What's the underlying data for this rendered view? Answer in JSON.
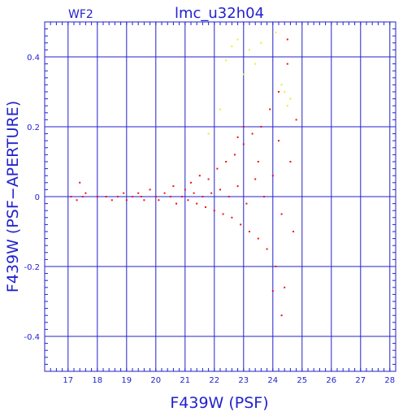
{
  "chart_data": {
    "type": "scatter",
    "title": "lmc_u32h04",
    "subtitle": "WF2",
    "xlabel": "F439W (PSF)",
    "ylabel": "F439W (PSF−APERTURE)",
    "xlim": [
      16.2,
      28.2
    ],
    "ylim": [
      -0.5,
      0.5
    ],
    "xticks": [
      17,
      18,
      19,
      20,
      21,
      22,
      23,
      24,
      25,
      26,
      27,
      28
    ],
    "yticks": [
      -0.4,
      -0.2,
      0,
      0.2,
      0.4
    ],
    "grid": true,
    "colors": {
      "frame": "#2222cc",
      "series_main": "#ee1111",
      "series_flagged": "#eeee22"
    },
    "series": [
      {
        "values": [
          [
            17.1,
            0.0
          ],
          [
            17.3,
            -0.01
          ],
          [
            17.4,
            0.04
          ],
          [
            17.5,
            0.0
          ],
          [
            17.6,
            0.01
          ],
          [
            18.0,
            0.0
          ],
          [
            18.3,
            0.0
          ],
          [
            18.5,
            -0.01
          ],
          [
            18.7,
            0.0
          ],
          [
            18.9,
            0.01
          ],
          [
            19.0,
            -0.01
          ],
          [
            19.2,
            0.0
          ],
          [
            19.4,
            0.01
          ],
          [
            19.5,
            0.0
          ],
          [
            19.6,
            -0.01
          ],
          [
            19.8,
            0.02
          ],
          [
            20.0,
            0.0
          ],
          [
            20.1,
            -0.01
          ],
          [
            20.3,
            0.01
          ],
          [
            20.5,
            0.0
          ],
          [
            20.6,
            0.03
          ],
          [
            20.7,
            -0.02
          ],
          [
            20.9,
            0.0
          ],
          [
            21.0,
            0.02
          ],
          [
            21.1,
            -0.01
          ],
          [
            21.2,
            0.04
          ],
          [
            21.3,
            0.01
          ],
          [
            21.4,
            -0.02
          ],
          [
            21.5,
            0.06
          ],
          [
            21.6,
            0.0
          ],
          [
            21.7,
            -0.03
          ],
          [
            21.8,
            0.05
          ],
          [
            21.9,
            0.01
          ],
          [
            22.0,
            -0.04
          ],
          [
            22.1,
            0.08
          ],
          [
            22.2,
            0.02
          ],
          [
            22.3,
            -0.05
          ],
          [
            22.4,
            0.1
          ],
          [
            22.5,
            0.0
          ],
          [
            22.6,
            -0.06
          ],
          [
            22.7,
            0.12
          ],
          [
            22.8,
            0.03
          ],
          [
            22.9,
            -0.08
          ],
          [
            23.0,
            0.15
          ],
          [
            23.1,
            -0.02
          ],
          [
            23.2,
            -0.1
          ],
          [
            23.3,
            0.18
          ],
          [
            23.4,
            0.05
          ],
          [
            23.5,
            -0.12
          ],
          [
            23.6,
            0.2
          ],
          [
            23.7,
            0.0
          ],
          [
            23.8,
            -0.15
          ],
          [
            23.9,
            0.25
          ],
          [
            24.0,
            0.06
          ],
          [
            24.1,
            -0.2
          ],
          [
            24.2,
            0.3
          ],
          [
            24.3,
            -0.05
          ],
          [
            24.4,
            -0.26
          ],
          [
            24.5,
            0.38
          ],
          [
            24.6,
            0.1
          ],
          [
            24.7,
            -0.1
          ],
          [
            24.8,
            0.22
          ],
          [
            24.0,
            -0.27
          ],
          [
            24.3,
            -0.34
          ],
          [
            24.5,
            0.45
          ],
          [
            23.0,
            0.2
          ],
          [
            22.8,
            0.17
          ],
          [
            23.5,
            0.1
          ],
          [
            24.2,
            0.16
          ]
        ]
      },
      {
        "values": [
          [
            22.4,
            0.39
          ],
          [
            22.6,
            0.43
          ],
          [
            22.8,
            0.45
          ],
          [
            23.0,
            0.35
          ],
          [
            23.2,
            0.42
          ],
          [
            23.4,
            0.38
          ],
          [
            23.6,
            0.44
          ],
          [
            24.1,
            0.47
          ],
          [
            24.4,
            0.3
          ],
          [
            24.6,
            0.28
          ],
          [
            21.8,
            0.18
          ],
          [
            22.2,
            0.25
          ],
          [
            24.5,
            0.26
          ],
          [
            24.3,
            0.32
          ]
        ]
      }
    ]
  }
}
